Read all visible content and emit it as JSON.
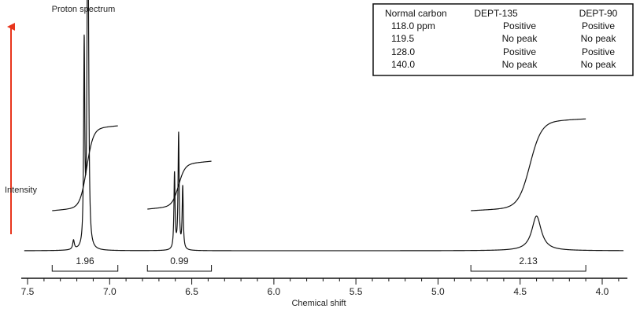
{
  "chart_data": {
    "type": "line",
    "title": "Proton spectrum",
    "xlabel": "Chemical shift",
    "ylabel": "Intensity",
    "x_axis": {
      "min": 3.85,
      "max": 7.55,
      "reversed": true,
      "ticks": [
        7.5,
        7.0,
        6.5,
        6.0,
        5.5,
        5.0,
        4.5,
        4.0
      ],
      "tick_labels": [
        "7.5",
        "7.0",
        "6.5",
        "6.0",
        "5.5",
        "5.0",
        "4.5",
        "4.0"
      ]
    },
    "axis_arrow_color": "#e8351c",
    "line_color": "#111111",
    "peaks": [
      {
        "ppm": 7.155,
        "height": 0.87,
        "width": 0.004
      },
      {
        "ppm": 7.135,
        "height": 0.97,
        "width": 0.004
      },
      {
        "ppm": 7.13,
        "height": 0.8,
        "width": 0.005
      },
      {
        "ppm": 7.22,
        "height": 0.04,
        "width": 0.006
      },
      {
        "ppm": 6.605,
        "height": 0.33,
        "width": 0.004
      },
      {
        "ppm": 6.58,
        "height": 0.5,
        "width": 0.004
      },
      {
        "ppm": 6.555,
        "height": 0.27,
        "width": 0.004
      },
      {
        "ppm": 4.4,
        "height": 0.15,
        "width": 0.035
      }
    ],
    "integrals": [
      {
        "label": "1.96",
        "from": 7.35,
        "to": 6.95,
        "value": 1.96
      },
      {
        "label": "0.99",
        "from": 6.77,
        "to": 6.38,
        "value": 0.99
      },
      {
        "label": "2.13",
        "from": 4.8,
        "to": 4.1,
        "value": 2.13
      }
    ],
    "integration_curves": [
      {
        "from": 7.35,
        "to": 6.95,
        "center": 7.14,
        "rise": 0.34
      },
      {
        "from": 6.77,
        "to": 6.38,
        "center": 6.58,
        "rise": 0.18
      },
      {
        "from": 4.8,
        "to": 4.1,
        "center": 4.44,
        "rise": 0.37
      }
    ],
    "dept_table": {
      "headers": [
        "Normal carbon",
        "DEPT-135",
        "DEPT-90"
      ],
      "rows": [
        [
          "118.0 ppm",
          "Positive",
          "Positive"
        ],
        [
          "119.5",
          "No peak",
          "No peak"
        ],
        [
          "128.0",
          "Positive",
          "Positive"
        ],
        [
          "140.0",
          "No peak",
          "No peak"
        ]
      ]
    }
  }
}
